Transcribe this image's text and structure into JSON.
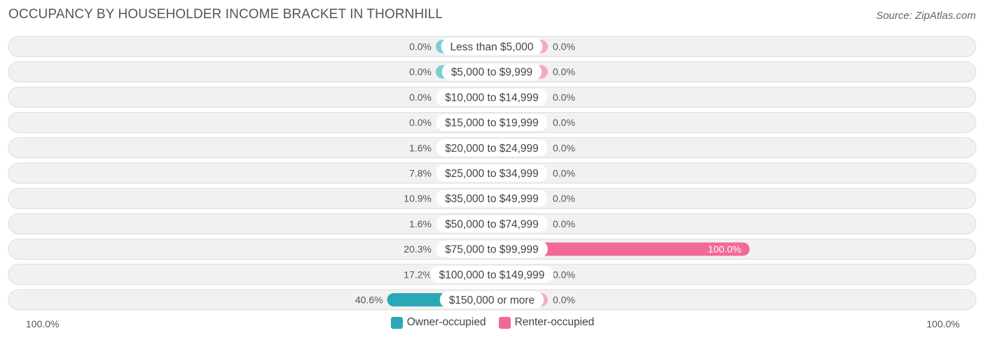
{
  "chart_data": {
    "type": "bar",
    "orientation": "diverging-horizontal",
    "title": "OCCUPANCY BY HOUSEHOLDER INCOME BRACKET IN THORNHILL",
    "source": "Source: ZipAtlas.com",
    "categories": [
      "Less than $5,000",
      "$5,000 to $9,999",
      "$10,000 to $14,999",
      "$15,000 to $19,999",
      "$20,000 to $24,999",
      "$25,000 to $34,999",
      "$35,000 to $49,999",
      "$50,000 to $74,999",
      "$75,000 to $99,999",
      "$100,000 to $149,999",
      "$150,000 or more"
    ],
    "series": [
      {
        "name": "Owner-occupied",
        "side": "left",
        "values": [
          0.0,
          0.0,
          0.0,
          0.0,
          1.6,
          7.8,
          10.9,
          1.6,
          20.3,
          17.2,
          40.6
        ],
        "labels": [
          "0.0%",
          "0.0%",
          "0.0%",
          "0.0%",
          "1.6%",
          "7.8%",
          "10.9%",
          "1.6%",
          "20.3%",
          "17.2%",
          "40.6%"
        ]
      },
      {
        "name": "Renter-occupied",
        "side": "right",
        "values": [
          0.0,
          0.0,
          0.0,
          0.0,
          0.0,
          0.0,
          0.0,
          0.0,
          100.0,
          0.0,
          0.0
        ],
        "labels": [
          "0.0%",
          "0.0%",
          "0.0%",
          "0.0%",
          "0.0%",
          "0.0%",
          "0.0%",
          "0.0%",
          "100.0%",
          "0.0%",
          "0.0%"
        ]
      }
    ],
    "axis": {
      "left_label": "100.0%",
      "right_label": "100.0%",
      "range": [
        0,
        100
      ]
    },
    "legend": [
      "Owner-occupied",
      "Renter-occupied"
    ],
    "legend_position": "bottom-center",
    "colors": {
      "owner_light": "#7ecdd3",
      "owner_strong": "#2aa8b8",
      "renter_light": "#f7a9c3",
      "renter_strong": "#f06a95"
    }
  }
}
